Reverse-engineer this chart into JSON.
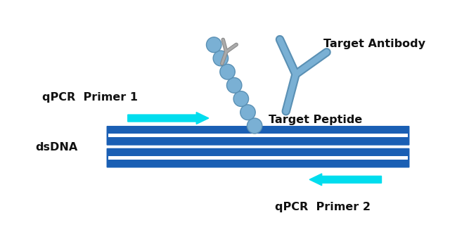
{
  "background_color": "#ffffff",
  "dsdna_color": "#1a5fb4",
  "dsdna_stripe_color": "#ffffff",
  "peptide_color": "#7ab0d4",
  "peptide_outline": "#5a90b4",
  "antibody_color": "#7ab0d4",
  "antibody_outline": "#5a90b4",
  "arrow_color": "#00ddee",
  "text_color": "#111111",
  "label_target_antibody": "Target Antibody",
  "label_target_peptide": "Target Peptide",
  "label_qpcr1": "qPCR  Primer 1",
  "label_qpcr2": "qPCR  Primer 2",
  "label_dsdna": "dsDNA",
  "figsize": [
    6.4,
    3.47
  ],
  "dpi": 100
}
